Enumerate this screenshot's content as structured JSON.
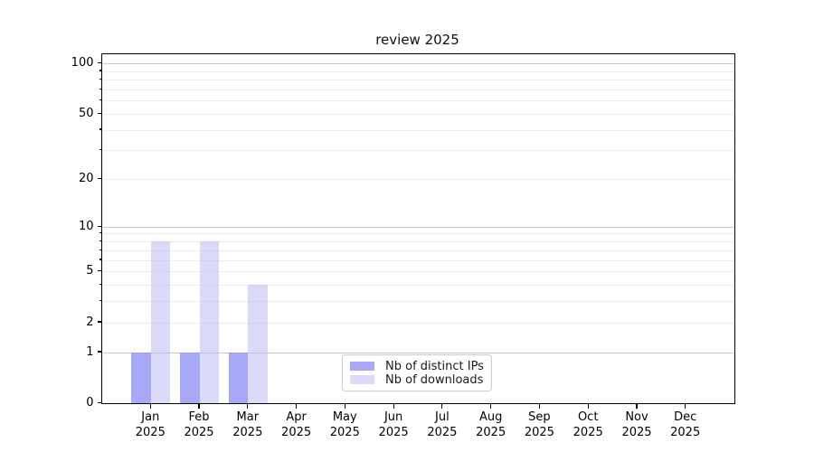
{
  "title": "review 2025",
  "chart_data": {
    "type": "bar",
    "title": "review 2025",
    "categories": [
      "Jan 2025",
      "Feb 2025",
      "Mar 2025",
      "Apr 2025",
      "May 2025",
      "Jun 2025",
      "Jul 2025",
      "Aug 2025",
      "Sep 2025",
      "Oct 2025",
      "Nov 2025",
      "Dec 2025"
    ],
    "month_labels": [
      "Jan",
      "Feb",
      "Mar",
      "Apr",
      "May",
      "Jun",
      "Jul",
      "Aug",
      "Sep",
      "Oct",
      "Nov",
      "Dec"
    ],
    "year_label": "2025",
    "series": [
      {
        "name": "Nb of distinct IPs",
        "color": "#a9a9f5",
        "fill_rgba": "rgba(146,146,246,0.8)",
        "values": [
          1,
          1,
          1,
          0,
          0,
          0,
          0,
          0,
          0,
          0,
          0,
          0
        ]
      },
      {
        "name": "Nb of downloads",
        "color": "#dcdcf8",
        "fill_rgba": "rgba(183,183,243,0.5)",
        "values": [
          8,
          8,
          4,
          0,
          0,
          0,
          0,
          0,
          0,
          0,
          0,
          0
        ]
      }
    ],
    "xlabel": "",
    "ylabel": "",
    "yscale": "log1p",
    "ylim": [
      0,
      113
    ],
    "y_labeled_ticks": [
      0,
      1,
      2,
      5,
      10,
      20,
      50,
      100
    ],
    "y_major_gridlines": [
      1,
      10,
      100
    ],
    "y_minor_gridlines": [
      2,
      3,
      4,
      5,
      6,
      7,
      8,
      9,
      20,
      30,
      40,
      50,
      60,
      70,
      80,
      90
    ],
    "y_minor_ticks": [
      3,
      4,
      6,
      7,
      8,
      9,
      30,
      40,
      60,
      70,
      80,
      90
    ],
    "grid": true,
    "legend_position": "lower center"
  },
  "legend": {
    "items": [
      {
        "label": "Nb of distinct IPs",
        "color": "#a9a9f5"
      },
      {
        "label": "Nb of downloads",
        "color": "#dcdcf8"
      }
    ]
  },
  "colors": {
    "background": "#ffffff",
    "spine": "#000000",
    "grid_major": "#c6c6c6",
    "grid_minor": "#ebebeb",
    "tick_text": "#000000",
    "title_text": "#111111",
    "legend_border": "#cccccc"
  }
}
